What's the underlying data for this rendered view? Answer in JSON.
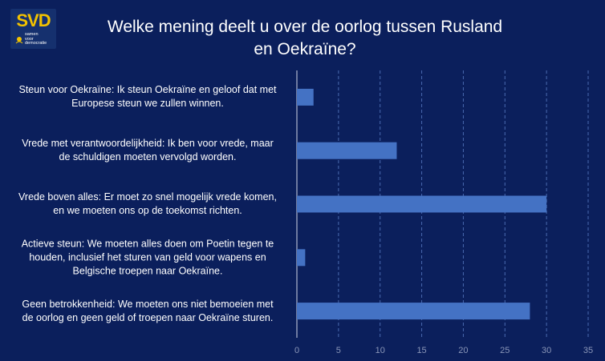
{
  "logo": {
    "name": "SVD",
    "sub_lines": [
      "samen",
      "voor",
      "democratie"
    ]
  },
  "chart_data": {
    "type": "bar",
    "orientation": "horizontal",
    "title": "Welke mening deelt u over de oorlog tussen Rusland en Oekraïne?",
    "categories": [
      [
        "Steun voor Oekraïne: Ik steun Oekraïne en geloof dat met",
        "Europese steun we zullen winnen."
      ],
      [
        "Vrede met verantwoordelijkheid: Ik ben voor vrede, maar",
        "de schuldigen moeten vervolgd worden."
      ],
      [
        "Vrede boven alles: Er moet zo snel mogelijk vrede komen,",
        "en we moeten ons op de toekomst richten."
      ],
      [
        "Actieve steun: We moeten alles doen om Poetin tegen te",
        "houden, inclusief het sturen van geld voor wapens en",
        "Belgische troepen naar Oekraïne."
      ],
      [
        "Geen betrokkenheid: We moeten ons niet bemoeien met",
        "de oorlog en geen geld of troepen naar Oekraïne sturen."
      ]
    ],
    "values": [
      2,
      12,
      30,
      1,
      28
    ],
    "xlim": [
      0,
      35
    ],
    "xticks": [
      0,
      5,
      10,
      15,
      20,
      25,
      30,
      35
    ],
    "grid": "vertical-dashed",
    "colors": {
      "bar": "#4472c4",
      "grid": "#4a6ab0",
      "background": "#0b1f5c",
      "tick": "#8a96b8"
    }
  }
}
